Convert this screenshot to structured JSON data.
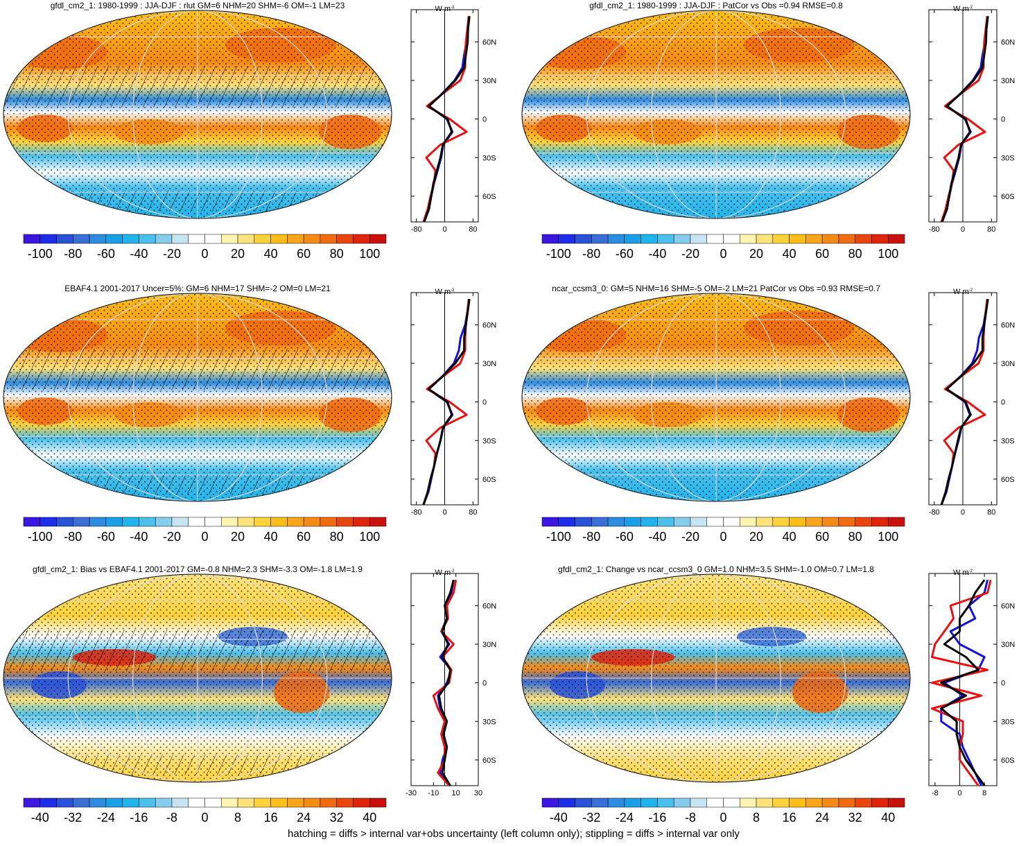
{
  "panels": [
    {
      "title": "gfdl_cm2_1: 1980-1999 : JJA-DJF : rlut GM=6 NHM=20 SHM=-6 OM=-1 LM=23",
      "hatching": true,
      "colorbar": {
        "clim": [
          -110,
          110
        ],
        "ticks": [
          -100,
          -80,
          -60,
          -40,
          -20,
          0,
          20,
          40,
          60,
          80,
          100
        ]
      },
      "profile": {
        "unit": "W m",
        "unit_exp": "-2",
        "xlim": [
          -95,
          95
        ],
        "ylim": [
          -80,
          85
        ],
        "xticks": [
          -80,
          0,
          80
        ],
        "yticks": [
          {
            "value": 60,
            "label": "60N"
          },
          {
            "value": 30,
            "label": "30N"
          },
          0,
          {
            "value": -30,
            "label": "30S"
          },
          {
            "value": -60,
            "label": "60S"
          }
        ],
        "lat": [
          -80,
          -70,
          -60,
          -50,
          -40,
          -30,
          -20,
          -10,
          0,
          10,
          20,
          30,
          40,
          50,
          60,
          70,
          80
        ],
        "series": [
          {
            "color": "#1010e0",
            "values": [
              -58,
              -44,
              -38,
              -30,
              -20,
              -10,
              -4,
              22,
              6,
              -44,
              -6,
              28,
              50,
              55,
              62,
              66,
              70
            ]
          },
          {
            "color": "#e81010",
            "values": [
              -60,
              -48,
              -40,
              -30,
              -26,
              -52,
              -12,
              62,
              14,
              -50,
              -4,
              44,
              58,
              58,
              60,
              64,
              68
            ]
          },
          {
            "color": "#000000",
            "values": [
              -58,
              -45,
              -38,
              -32,
              -22,
              -12,
              -5,
              20,
              8,
              -45,
              -5,
              30,
              55,
              60,
              65,
              66,
              70
            ]
          }
        ]
      }
    },
    {
      "title": "gfdl_cm2_1: 1980-1999 : JJA-DJF : PatCor vs Obs =0.94 RMSE=0.8",
      "hatching": false,
      "colorbar": {
        "clim": [
          -110,
          110
        ],
        "ticks": [
          -100,
          -80,
          -60,
          -40,
          -20,
          0,
          20,
          40,
          60,
          80,
          100
        ]
      },
      "profile": {
        "unit": "W m",
        "unit_exp": "-2",
        "xlim": [
          -95,
          95
        ],
        "ylim": [
          -80,
          85
        ],
        "xticks": [
          -80,
          0,
          80
        ],
        "yticks": [
          {
            "value": 60,
            "label": "60N"
          },
          {
            "value": 30,
            "label": "30N"
          },
          0,
          {
            "value": -30,
            "label": "30S"
          },
          {
            "value": -60,
            "label": "60S"
          }
        ],
        "lat": [
          -80,
          -70,
          -60,
          -50,
          -40,
          -30,
          -20,
          -10,
          0,
          10,
          20,
          30,
          40,
          50,
          60,
          70,
          80
        ],
        "series": [
          {
            "color": "#1010e0",
            "values": [
              -58,
              -44,
              -38,
              -30,
              -20,
              -10,
              -4,
              22,
              6,
              -44,
              -6,
              28,
              50,
              55,
              62,
              66,
              70
            ]
          },
          {
            "color": "#e81010",
            "values": [
              -60,
              -48,
              -40,
              -30,
              -26,
              -52,
              -12,
              62,
              14,
              -50,
              -4,
              44,
              58,
              58,
              60,
              64,
              68
            ]
          },
          {
            "color": "#000000",
            "values": [
              -58,
              -45,
              -38,
              -32,
              -22,
              -12,
              -5,
              20,
              8,
              -45,
              -5,
              30,
              55,
              60,
              65,
              66,
              70
            ]
          }
        ]
      }
    },
    {
      "title": "EBAF4.1 2001-2017 Uncer=5%: GM=6 NHM=17 SHM=-2 OM=0 LM=21",
      "hatching": true,
      "colorbar": {
        "clim": [
          -110,
          110
        ],
        "ticks": [
          -100,
          -80,
          -60,
          -40,
          -20,
          0,
          20,
          40,
          60,
          80,
          100
        ]
      },
      "profile": {
        "unit": "W m",
        "unit_exp": "-2",
        "xlim": [
          -95,
          95
        ],
        "ylim": [
          -80,
          85
        ],
        "xticks": [
          -80,
          0,
          80
        ],
        "yticks": [
          {
            "value": 60,
            "label": "60N"
          },
          {
            "value": 30,
            "label": "30N"
          },
          0,
          {
            "value": -30,
            "label": "30S"
          },
          {
            "value": -60,
            "label": "60S"
          }
        ],
        "lat": [
          -80,
          -70,
          -60,
          -50,
          -40,
          -30,
          -20,
          -10,
          0,
          10,
          20,
          30,
          40,
          50,
          60,
          70,
          80
        ],
        "series": [
          {
            "color": "#1010e0",
            "values": [
              -60,
              -46,
              -38,
              -30,
              -22,
              -12,
              -4,
              22,
              6,
              -46,
              -6,
              26,
              40,
              45,
              58,
              64,
              70
            ]
          },
          {
            "color": "#e81010",
            "values": [
              -60,
              -48,
              -40,
              -30,
              -26,
              -52,
              -12,
              62,
              14,
              -50,
              -4,
              44,
              58,
              58,
              60,
              64,
              68
            ]
          },
          {
            "color": "#000000",
            "values": [
              -60,
              -48,
              -40,
              -30,
              -22,
              -12,
              -5,
              20,
              8,
              -45,
              -5,
              30,
              55,
              55,
              60,
              65,
              70
            ]
          }
        ]
      }
    },
    {
      "title": "ncar_ccsm3_0: GM=5 NHM=16 SHM=-5 OM=-2 LM=21 PatCor vs Obs =0.93 RMSE=0.7",
      "hatching": false,
      "colorbar": {
        "clim": [
          -110,
          110
        ],
        "ticks": [
          -100,
          -80,
          -60,
          -40,
          -20,
          0,
          20,
          40,
          60,
          80,
          100
        ]
      },
      "profile": {
        "unit": "W m",
        "unit_exp": "-2",
        "xlim": [
          -95,
          95
        ],
        "ylim": [
          -80,
          85
        ],
        "xticks": [
          -80,
          0,
          80
        ],
        "yticks": [
          {
            "value": 60,
            "label": "60N"
          },
          {
            "value": 30,
            "label": "30N"
          },
          0,
          {
            "value": -30,
            "label": "30S"
          },
          {
            "value": -60,
            "label": "60S"
          }
        ],
        "lat": [
          -80,
          -70,
          -60,
          -50,
          -40,
          -30,
          -20,
          -10,
          0,
          10,
          20,
          30,
          40,
          50,
          60,
          70,
          80
        ],
        "series": [
          {
            "color": "#1010e0",
            "values": [
              -60,
              -46,
              -38,
              -30,
              -22,
              -12,
              -4,
              20,
              6,
              -46,
              -6,
              26,
              40,
              45,
              58,
              64,
              70
            ]
          },
          {
            "color": "#e81010",
            "values": [
              -60,
              -48,
              -40,
              -30,
              -26,
              -52,
              -12,
              62,
              14,
              -50,
              -4,
              44,
              58,
              58,
              60,
              64,
              68
            ]
          },
          {
            "color": "#000000",
            "values": [
              -60,
              -48,
              -40,
              -30,
              -22,
              -14,
              -5,
              22,
              8,
              -45,
              -5,
              30,
              55,
              55,
              60,
              65,
              70
            ]
          }
        ]
      }
    },
    {
      "title": "gfdl_cm2_1: Bias vs EBAF4.1 2001-2017 GM=-0.8 NHM=2.3 SHM=-3.3 OM=-1.8 LM=1.9",
      "hatching": true,
      "colorbar": {
        "clim": [
          -44,
          44
        ],
        "ticks": [
          -40,
          -32,
          -24,
          -16,
          -8,
          0,
          8,
          16,
          24,
          32,
          40
        ]
      },
      "profile": {
        "unit": "W m",
        "unit_exp": "-2",
        "xlim": [
          -30,
          30
        ],
        "ylim": [
          -80,
          85
        ],
        "xticks": [
          -30,
          -10,
          10,
          30
        ],
        "yticks": [
          {
            "value": 60,
            "label": "60N"
          },
          {
            "value": 30,
            "label": "30N"
          },
          0,
          {
            "value": -30,
            "label": "30S"
          },
          {
            "value": -60,
            "label": "60S"
          }
        ],
        "lat": [
          -80,
          -70,
          -60,
          -50,
          -40,
          -30,
          -20,
          -10,
          0,
          10,
          20,
          30,
          40,
          50,
          60,
          70,
          80
        ],
        "series": [
          {
            "color": "#1010e0",
            "values": [
              5,
              -4,
              -2,
              2,
              -3,
              2,
              -4,
              -6,
              2,
              6,
              -4,
              4,
              -3,
              2,
              1,
              6,
              8
            ]
          },
          {
            "color": "#e81010",
            "values": [
              4,
              -6,
              0,
              0,
              -3,
              0,
              -6,
              -10,
              4,
              6,
              -2,
              8,
              -3,
              3,
              2,
              8,
              10
            ]
          },
          {
            "color": "#000000",
            "values": [
              5,
              -2,
              0,
              2,
              -1,
              2,
              -3,
              -5,
              3,
              5,
              -2,
              3,
              -2,
              2,
              0,
              5,
              8
            ]
          }
        ]
      }
    },
    {
      "title": "gfdl_cm2_1: Change vs ncar_ccsm3_0 GM=1.0 NHM=3.5 SHM=-1.0 OM=0.7 LM=1.8",
      "hatching": false,
      "colorbar": {
        "clim": [
          -44,
          44
        ],
        "ticks": [
          -40,
          -32,
          -24,
          -16,
          -8,
          0,
          8,
          16,
          24,
          32,
          40
        ]
      },
      "profile": {
        "unit": "W m",
        "unit_exp": "-2",
        "xlim": [
          -10,
          12
        ],
        "ylim": [
          -80,
          85
        ],
        "xticks": [
          -8,
          0,
          8
        ],
        "yticks": [
          {
            "value": 60,
            "label": "60N"
          },
          {
            "value": 30,
            "label": "30N"
          },
          0,
          {
            "value": -30,
            "label": "30S"
          },
          {
            "value": -60,
            "label": "60S"
          }
        ],
        "lat": [
          -80,
          -70,
          -60,
          -50,
          -40,
          -30,
          -20,
          -10,
          0,
          10,
          20,
          30,
          40,
          50,
          60,
          70,
          80
        ],
        "series": [
          {
            "color": "#1010e0",
            "values": [
              7,
              5,
              3,
              1,
              0,
              -6,
              -6,
              1,
              -5,
              6,
              8,
              0,
              -3,
              5,
              3,
              8,
              9
            ]
          },
          {
            "color": "#e81010",
            "values": [
              6,
              3,
              0,
              0,
              1,
              1,
              -9,
              7,
              -9,
              9,
              -9,
              -8,
              -5,
              -2,
              -3,
              9,
              10
            ]
          },
          {
            "color": "#000000",
            "values": [
              8,
              5,
              2,
              0,
              -1,
              -1,
              -6,
              2,
              -6,
              6,
              2,
              -5,
              0,
              0,
              3,
              5,
              8
            ]
          }
        ]
      }
    }
  ],
  "colorbar_colors": [
    "#3a16e0",
    "#1c2ee8",
    "#2a52d8",
    "#3a6fd8",
    "#2e8ce0",
    "#1aa0e6",
    "#20b4ec",
    "#4cc0ec",
    "#86ccec",
    "#c6e4f2",
    "#ffffff",
    "#ffffff",
    "#fff4b0",
    "#ffe27a",
    "#ffd23c",
    "#fcbf1a",
    "#f9a41a",
    "#f58a14",
    "#f06a0e",
    "#e8460c",
    "#e0240c",
    "#c8100c"
  ],
  "footer": "hatching = diffs > internal var+obs uncertainty (left column only); stippling = diffs > internal var only"
}
